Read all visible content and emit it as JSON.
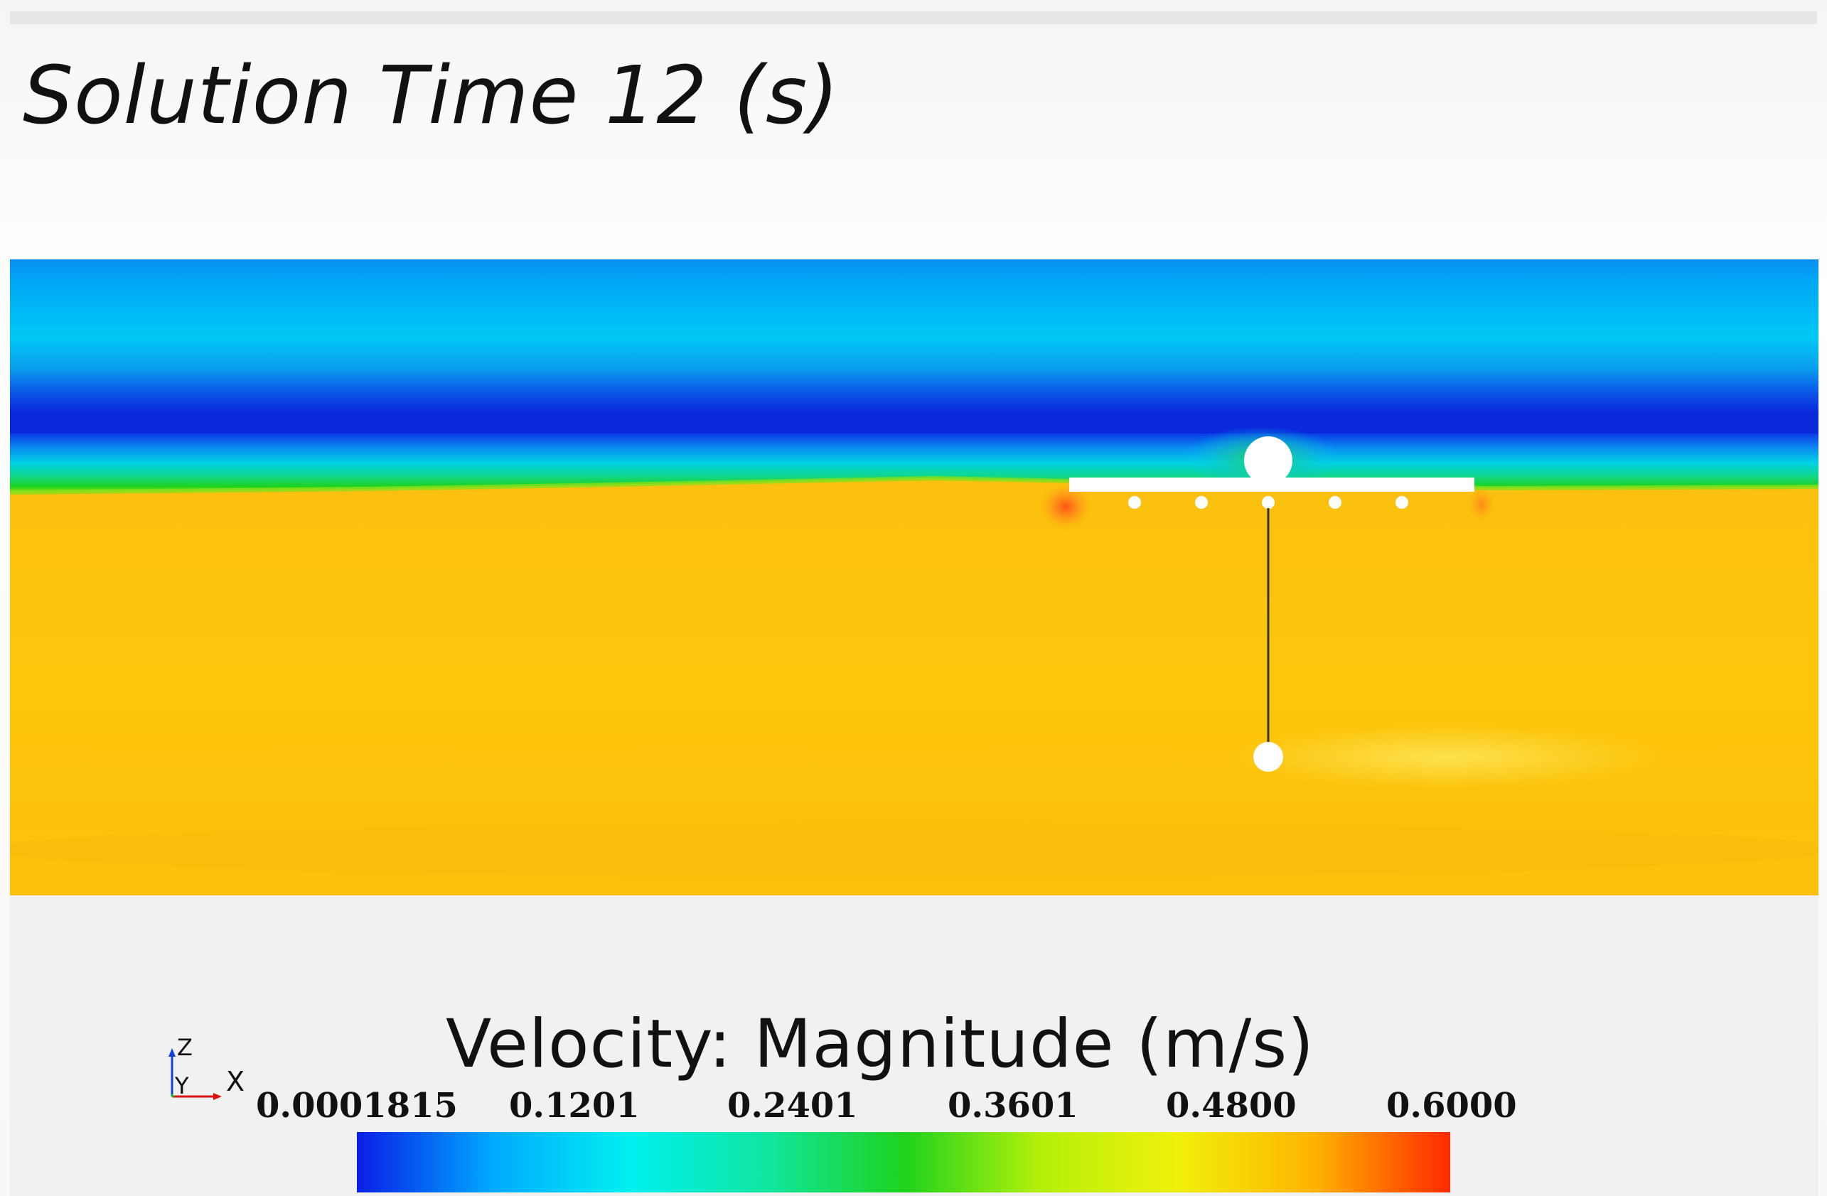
{
  "title": "Solution Time 12 (s)",
  "scalar_bar": {
    "label": "Velocity: Magnitude (m/s)",
    "ticks": [
      "0.0001815",
      "0.1201",
      "0.2401",
      "0.3601",
      "0.4800",
      "0.6000"
    ],
    "min": 0.0001815,
    "max": 0.6,
    "colormap": [
      "#0a1ee6",
      "#00aaff",
      "#00f0f0",
      "#10e6a0",
      "#1ed21e",
      "#b4f00a",
      "#f0f00a",
      "#ffb400",
      "#ff2a00"
    ]
  },
  "axes_triad": {
    "z_label": "Z",
    "y_label": "Y",
    "x_label": "X",
    "x_color": "#e01010",
    "y_color": "#10c010",
    "z_color": "#1040e0"
  },
  "field_colors": {
    "air_upper": "#00c8f5",
    "interface_band": "#0a28dc",
    "water": "#fdc40a",
    "wake": "#fde047",
    "hotspot": "#ff5020",
    "structure": "#ffffff",
    "mooring_line": "#333333"
  }
}
